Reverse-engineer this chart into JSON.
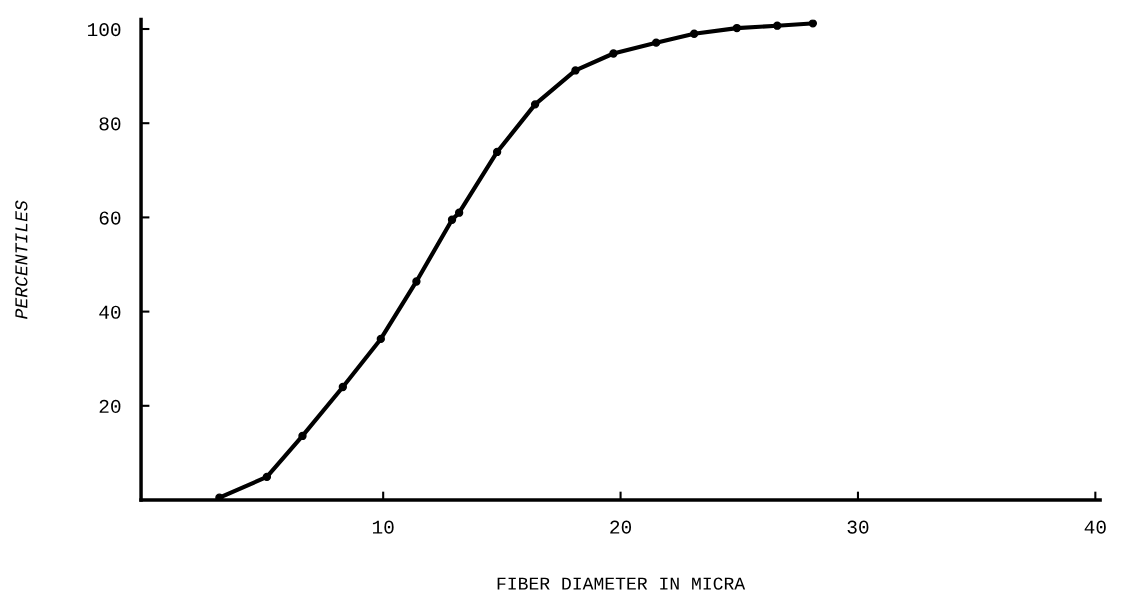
{
  "chart_data": {
    "type": "line",
    "xlabel": "FIBER DIAMETER IN MICRA",
    "ylabel": "PERCENTILES",
    "series": [
      {
        "color": "#000000",
        "x": [
          3.1,
          5.1,
          6.6,
          8.3,
          9.9,
          11.4,
          12.9,
          13.2,
          14.8,
          16.4,
          18.1,
          19.7,
          21.5,
          23.1,
          24.9,
          26.6,
          28.1
        ],
        "values": [
          0.5,
          4.9,
          13.6,
          24,
          34.2,
          46.4,
          59.5,
          61,
          73.9,
          84,
          91.2,
          94.8,
          97.1,
          99,
          100.2,
          100.7,
          101.2
        ]
      }
    ],
    "xlim": [
      -0.2,
      40.2
    ],
    "xticks": [
      10,
      20,
      30,
      40
    ],
    "ylim": [
      0,
      102
    ],
    "yticks": [
      20,
      40,
      60,
      80,
      100
    ],
    "marker": "circle",
    "line_style": "solid",
    "grid": false,
    "legend": false
  }
}
